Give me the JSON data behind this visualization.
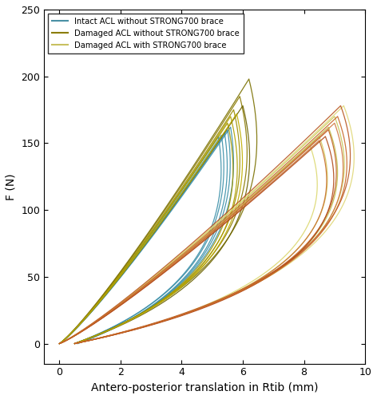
{
  "xlabel": "Antero-posterior translation in Rtib (mm)",
  "ylabel": "F (N)",
  "xlim": [
    -0.5,
    10
  ],
  "ylim": [
    -15,
    250
  ],
  "xticks": [
    0,
    2,
    4,
    6,
    8,
    10
  ],
  "yticks": [
    0,
    50,
    100,
    150,
    200,
    250
  ],
  "legend_labels": [
    "Intact ACL without STRONG700 brace",
    "Damaged ACL without STRONG700 brace",
    "Damaged ACL with STRONG700 brace"
  ],
  "legend_colors": [
    "#4A90A4",
    "#8B7D00",
    "#C8C060"
  ],
  "figsize": [
    4.72,
    5.0
  ],
  "dpi": 100,
  "group1": {
    "color": "#3A8FA8",
    "loops": [
      {
        "xp": 5.2,
        "fp": 155,
        "x_ret_end": 0.5,
        "ret_bow": 1.5
      },
      {
        "xp": 5.4,
        "fp": 158,
        "x_ret_end": 0.6,
        "ret_bow": 1.5
      },
      {
        "xp": 5.6,
        "fp": 162,
        "x_ret_end": 0.55,
        "ret_bow": 1.6
      },
      {
        "xp": 5.3,
        "fp": 156,
        "x_ret_end": 0.5,
        "ret_bow": 1.4
      },
      {
        "xp": 5.5,
        "fp": 160,
        "x_ret_end": 0.6,
        "ret_bow": 1.5
      }
    ]
  },
  "group2": {
    "colors": [
      "#9B8C00",
      "#8B7A00",
      "#A09500",
      "#7A7000",
      "#B0A000",
      "#6B6200",
      "#C0AE00"
    ],
    "loops": [
      {
        "xp": 5.7,
        "fp": 175,
        "x_ret_end": 0.5,
        "ret_bow": 2.5
      },
      {
        "xp": 5.9,
        "fp": 185,
        "x_ret_end": 0.5,
        "ret_bow": 2.8
      },
      {
        "xp": 5.5,
        "fp": 165,
        "x_ret_end": 0.5,
        "ret_bow": 2.3
      },
      {
        "xp": 6.2,
        "fp": 198,
        "x_ret_end": 0.5,
        "ret_bow": 3.0
      },
      {
        "xp": 5.6,
        "fp": 170,
        "x_ret_end": 0.5,
        "ret_bow": 2.6
      },
      {
        "xp": 6.0,
        "fp": 178,
        "x_ret_end": 0.5,
        "ret_bow": 2.7
      },
      {
        "xp": 5.8,
        "fp": 172,
        "x_ret_end": 0.5,
        "ret_bow": 2.4
      }
    ]
  },
  "group3_light": {
    "colors": [
      "#D4CC60",
      "#C8C858",
      "#DCD870",
      "#C0C050",
      "#E0D878"
    ],
    "loops": [
      {
        "xp": 8.5,
        "fp": 155,
        "x_ret_end": 0.5,
        "ret_bow": 3.5
      },
      {
        "xp": 9.0,
        "fp": 170,
        "x_ret_end": 0.5,
        "ret_bow": 4.0
      },
      {
        "xp": 8.2,
        "fp": 148,
        "x_ret_end": 0.5,
        "ret_bow": 3.2
      },
      {
        "xp": 8.8,
        "fp": 162,
        "x_ret_end": 0.5,
        "ret_bow": 3.8
      },
      {
        "xp": 9.3,
        "fp": 178,
        "x_ret_end": 0.5,
        "ret_bow": 4.2
      }
    ]
  },
  "group3_brown": {
    "colors": [
      "#C06020",
      "#B85520",
      "#C87030",
      "#D07840",
      "#B04818",
      "#C86828"
    ],
    "loops": [
      {
        "xp": 8.8,
        "fp": 160,
        "x_ret_end": 0.5,
        "ret_bow": 3.5
      },
      {
        "xp": 9.2,
        "fp": 178,
        "x_ret_end": 0.5,
        "ret_bow": 4.0
      },
      {
        "xp": 8.5,
        "fp": 152,
        "x_ret_end": 0.5,
        "ret_bow": 3.3
      },
      {
        "xp": 9.0,
        "fp": 165,
        "x_ret_end": 0.5,
        "ret_bow": 3.7
      },
      {
        "xp": 8.7,
        "fp": 155,
        "x_ret_end": 0.5,
        "ret_bow": 3.6
      },
      {
        "xp": 9.1,
        "fp": 170,
        "x_ret_end": 0.5,
        "ret_bow": 3.9
      }
    ]
  }
}
